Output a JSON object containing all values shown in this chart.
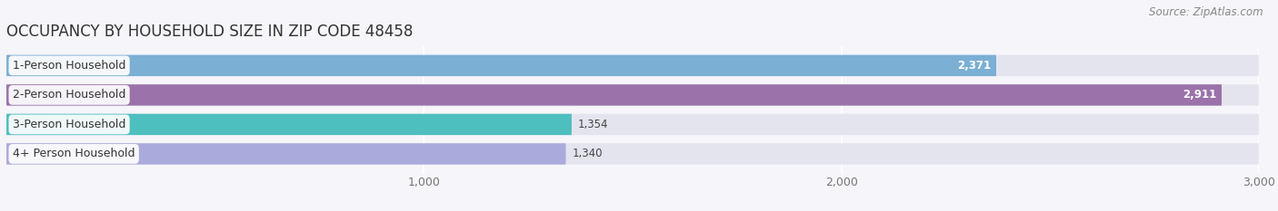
{
  "title": "OCCUPANCY BY HOUSEHOLD SIZE IN ZIP CODE 48458",
  "source": "Source: ZipAtlas.com",
  "categories": [
    "1-Person Household",
    "2-Person Household",
    "3-Person Household",
    "4+ Person Household"
  ],
  "values": [
    2371,
    2911,
    1354,
    1340
  ],
  "bar_colors": [
    "#7bafd4",
    "#9b72aa",
    "#4dbfbf",
    "#aaaadd"
  ],
  "bar_bg_color": "#e4e4ee",
  "xlim": [
    0,
    3000
  ],
  "xticks": [
    1000,
    2000,
    3000
  ],
  "xtick_labels": [
    "1,000",
    "2,000",
    "3,000"
  ],
  "title_fontsize": 12,
  "source_fontsize": 8.5,
  "label_fontsize": 9,
  "value_fontsize": 8.5,
  "bar_height": 0.72,
  "bg_color": "#f5f5fa",
  "grid_color": "#ffffff"
}
